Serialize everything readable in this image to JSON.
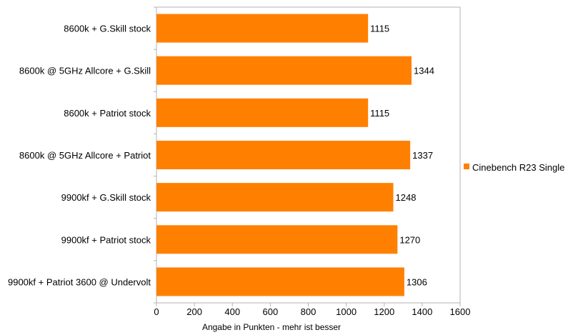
{
  "chart_data": {
    "type": "bar",
    "orientation": "horizontal",
    "categories": [
      "8600k + G.Skill stock",
      "8600k @ 5GHz Allcore + G.Skill",
      "8600k + Patriot stock",
      "8600k @ 5GHz Allcore + Patriot",
      "9900kf + G.Skill stock",
      "9900kf + Patriot stock",
      "9900kf + Patriot 3600 @ Undervolt"
    ],
    "series": [
      {
        "name": "Cinebench R23 Single",
        "color": "#ff8000",
        "values": [
          1115,
          1344,
          1115,
          1337,
          1248,
          1270,
          1306
        ]
      }
    ],
    "xlabel": "Angabe in Punkten - mehr ist besser",
    "xlim": [
      0,
      1600
    ],
    "xticks": [
      0,
      200,
      400,
      600,
      800,
      1000,
      1200,
      1400,
      1600
    ],
    "xgrid": false,
    "data_labels": true,
    "legend_position": "right"
  }
}
